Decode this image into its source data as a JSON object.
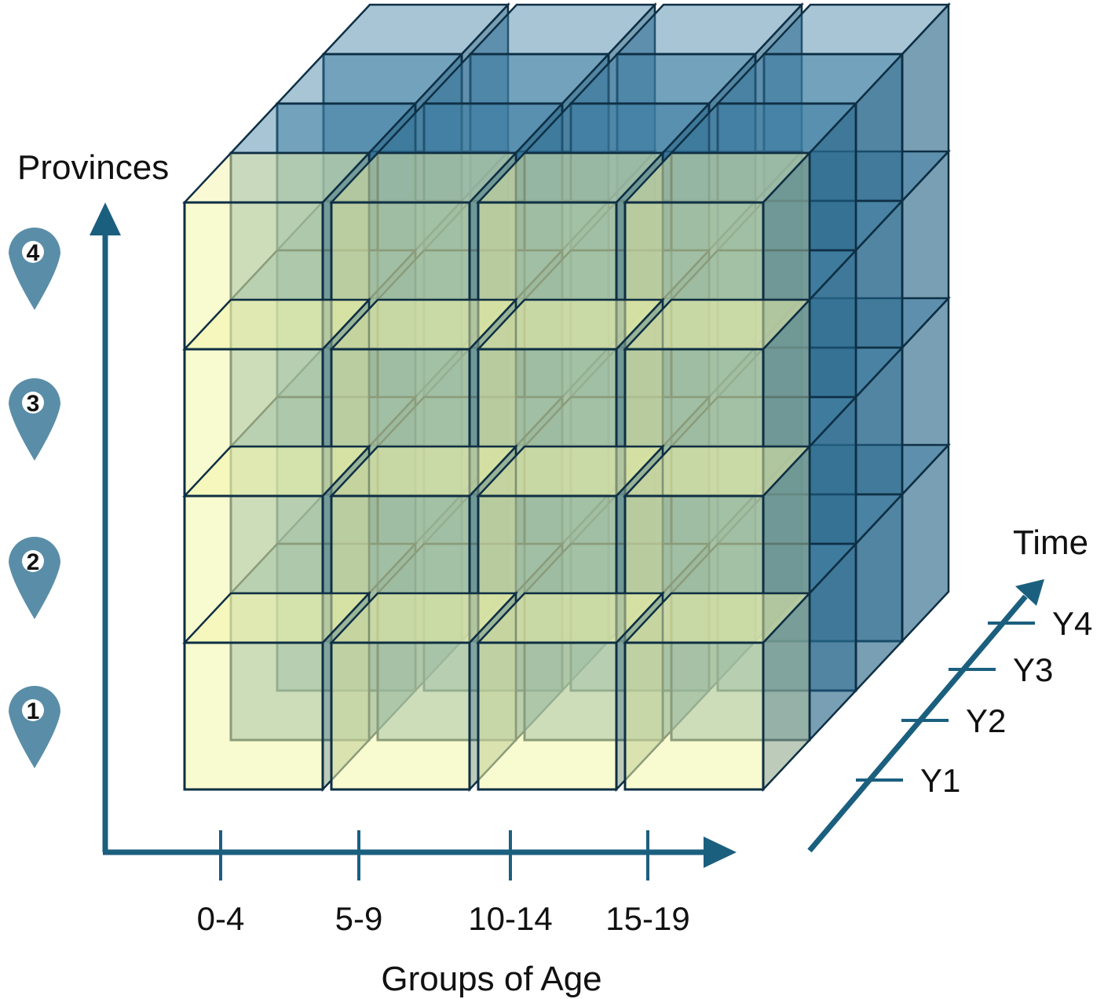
{
  "axes": {
    "y_title": "Provinces",
    "x_title": "Groups of Age",
    "z_title": "Time"
  },
  "x_categories": [
    "0-4",
    "5-9",
    "10-14",
    "15-19"
  ],
  "z_categories": [
    "Y1",
    "Y2",
    "Y3",
    "Y4"
  ],
  "provinces": [
    "1",
    "2",
    "3",
    "4"
  ],
  "icons": {
    "province_marker": "map-pin-icon"
  },
  "colors": {
    "axis": "#1b5f7f",
    "front_cube_fill": "#f3f5a8",
    "back_cube_fill": "#3f7fa3",
    "cube_edge": "#0e2f44",
    "pin": "#5a8ea8",
    "text": "#111111"
  }
}
